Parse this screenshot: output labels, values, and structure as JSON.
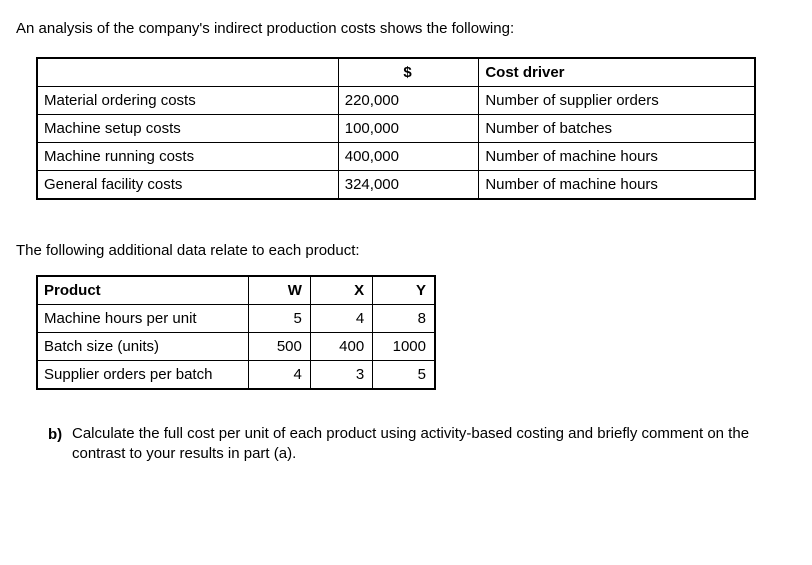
{
  "intro": "An analysis of the company's indirect production costs shows the following:",
  "costTable": {
    "headers": {
      "label": "",
      "dollar": "$",
      "driver": "Cost driver"
    },
    "rows": [
      {
        "label": "Material ordering costs",
        "amount": "220,000",
        "driver": "Number of supplier orders"
      },
      {
        "label": "Machine setup costs",
        "amount": "100,000",
        "driver": "Number of batches"
      },
      {
        "label": "Machine running costs",
        "amount": "400,000",
        "driver": "Number of machine hours"
      },
      {
        "label": "General facility costs",
        "amount": "324,000",
        "driver": "Number of machine hours"
      }
    ]
  },
  "mid": "The following additional data relate to each product:",
  "productTable": {
    "headers": {
      "rowhead": "Product",
      "w": "W",
      "x": "X",
      "y": "Y"
    },
    "rows": [
      {
        "label": "Machine hours per unit",
        "w": "5",
        "x": "4",
        "y": "8"
      },
      {
        "label": "Batch size (units)",
        "w": "500",
        "x": "400",
        "y": "1000"
      },
      {
        "label": "Supplier orders per batch",
        "w": "4",
        "x": "3",
        "y": "5"
      }
    ]
  },
  "question": {
    "marker": "b)",
    "text": "Calculate the full cost per unit of each product using activity-based costing and briefly comment on the contrast to your results in part (a)."
  }
}
